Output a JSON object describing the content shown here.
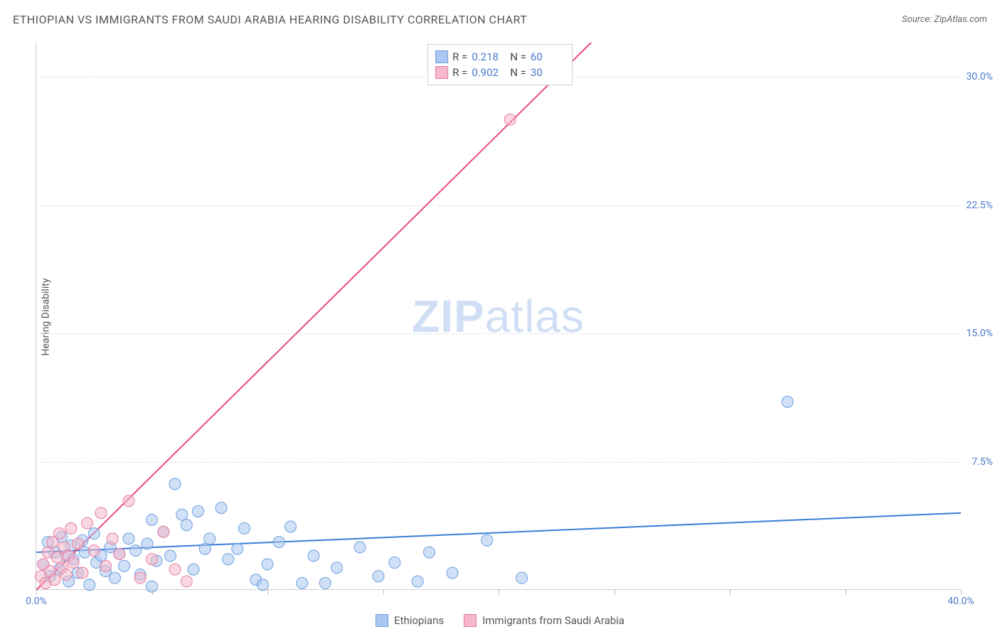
{
  "title": "ETHIOPIAN VS IMMIGRANTS FROM SAUDI ARABIA HEARING DISABILITY CORRELATION CHART",
  "source_label": "Source: ZipAtlas.com",
  "y_axis_label": "Hearing Disability",
  "watermark_a": "ZIP",
  "watermark_b": "atlas",
  "chart": {
    "type": "scatter",
    "xlim": [
      0,
      40
    ],
    "ylim": [
      0,
      32
    ],
    "x_ticks": [
      0,
      5,
      10,
      15,
      20,
      25,
      30,
      35,
      40
    ],
    "x_tick_labels": {
      "0": "0.0%",
      "40": "40.0%"
    },
    "y_ticks": [
      7.5,
      15.0,
      22.5,
      30.0
    ],
    "y_tick_labels": [
      "7.5%",
      "15.0%",
      "22.5%",
      "30.0%"
    ],
    "grid_color": "#e0e0e0",
    "background_color": "#ffffff",
    "series": [
      {
        "name": "Ethiopians",
        "fill": "#a9c7ef",
        "stroke": "#6c9fe0",
        "marker_radius": 8,
        "trend_color": "#3b7dd8",
        "trend_width": 2,
        "trend": {
          "x1": 0,
          "y1": 2.2,
          "x2": 40,
          "y2": 4.5
        },
        "R": "0.218",
        "N": "60",
        "points": [
          [
            0.3,
            1.5
          ],
          [
            0.5,
            2.8
          ],
          [
            0.6,
            0.8
          ],
          [
            0.8,
            2.2
          ],
          [
            1.0,
            1.2
          ],
          [
            1.1,
            3.1
          ],
          [
            1.3,
            2.0
          ],
          [
            1.4,
            0.5
          ],
          [
            1.5,
            2.6
          ],
          [
            1.6,
            1.8
          ],
          [
            1.8,
            1.0
          ],
          [
            2.0,
            2.9
          ],
          [
            2.1,
            2.2
          ],
          [
            2.3,
            0.3
          ],
          [
            2.5,
            3.3
          ],
          [
            2.6,
            1.6
          ],
          [
            2.8,
            2.0
          ],
          [
            3.0,
            1.1
          ],
          [
            3.2,
            2.5
          ],
          [
            3.4,
            0.7
          ],
          [
            3.6,
            2.1
          ],
          [
            3.8,
            1.4
          ],
          [
            4.0,
            3.0
          ],
          [
            4.3,
            2.3
          ],
          [
            4.5,
            0.9
          ],
          [
            4.8,
            2.7
          ],
          [
            5.0,
            4.1
          ],
          [
            5.2,
            1.7
          ],
          [
            5.5,
            3.4
          ],
          [
            5.8,
            2.0
          ],
          [
            6.0,
            6.2
          ],
          [
            6.3,
            4.4
          ],
          [
            6.5,
            3.8
          ],
          [
            6.8,
            1.2
          ],
          [
            7.0,
            4.6
          ],
          [
            7.3,
            2.4
          ],
          [
            7.5,
            3.0
          ],
          [
            8.0,
            4.8
          ],
          [
            8.3,
            1.8
          ],
          [
            8.7,
            2.4
          ],
          [
            9.0,
            3.6
          ],
          [
            9.5,
            0.6
          ],
          [
            10.0,
            1.5
          ],
          [
            10.5,
            2.8
          ],
          [
            11.0,
            3.7
          ],
          [
            11.5,
            0.4
          ],
          [
            12.0,
            2.0
          ],
          [
            13.0,
            1.3
          ],
          [
            14.0,
            2.5
          ],
          [
            14.8,
            0.8
          ],
          [
            15.5,
            1.6
          ],
          [
            16.5,
            0.5
          ],
          [
            17.0,
            2.2
          ],
          [
            18.0,
            1.0
          ],
          [
            19.5,
            2.9
          ],
          [
            21.0,
            0.7
          ],
          [
            32.5,
            11.0
          ],
          [
            5.0,
            0.2
          ],
          [
            9.8,
            0.3
          ],
          [
            12.5,
            0.4
          ]
        ]
      },
      {
        "name": "Immigrants from Saudi Arabia",
        "fill": "#f4b8ca",
        "stroke": "#e77ca0",
        "marker_radius": 8,
        "trend_color": "#e84a7a",
        "trend_width": 2,
        "trend": {
          "x1": 0,
          "y1": 0.0,
          "x2": 24,
          "y2": 32
        },
        "R": "0.902",
        "N": "30",
        "points": [
          [
            0.2,
            0.8
          ],
          [
            0.3,
            1.5
          ],
          [
            0.4,
            0.4
          ],
          [
            0.5,
            2.2
          ],
          [
            0.6,
            1.1
          ],
          [
            0.7,
            2.8
          ],
          [
            0.8,
            0.6
          ],
          [
            0.9,
            1.9
          ],
          [
            1.0,
            3.3
          ],
          [
            1.1,
            1.3
          ],
          [
            1.2,
            2.5
          ],
          [
            1.3,
            0.9
          ],
          [
            1.4,
            2.0
          ],
          [
            1.5,
            3.6
          ],
          [
            1.6,
            1.6
          ],
          [
            1.8,
            2.7
          ],
          [
            2.0,
            1.0
          ],
          [
            2.2,
            3.9
          ],
          [
            2.5,
            2.3
          ],
          [
            2.8,
            4.5
          ],
          [
            3.0,
            1.4
          ],
          [
            3.3,
            3.0
          ],
          [
            3.6,
            2.1
          ],
          [
            4.0,
            5.2
          ],
          [
            4.5,
            0.7
          ],
          [
            5.0,
            1.8
          ],
          [
            5.5,
            3.4
          ],
          [
            6.0,
            1.2
          ],
          [
            6.5,
            0.5
          ],
          [
            20.5,
            27.5
          ]
        ]
      }
    ]
  },
  "legend_top": {
    "r_label": "R =",
    "n_label": "N ="
  },
  "legend_bottom": [
    "Ethiopians",
    "Immigrants from Saudi Arabia"
  ]
}
